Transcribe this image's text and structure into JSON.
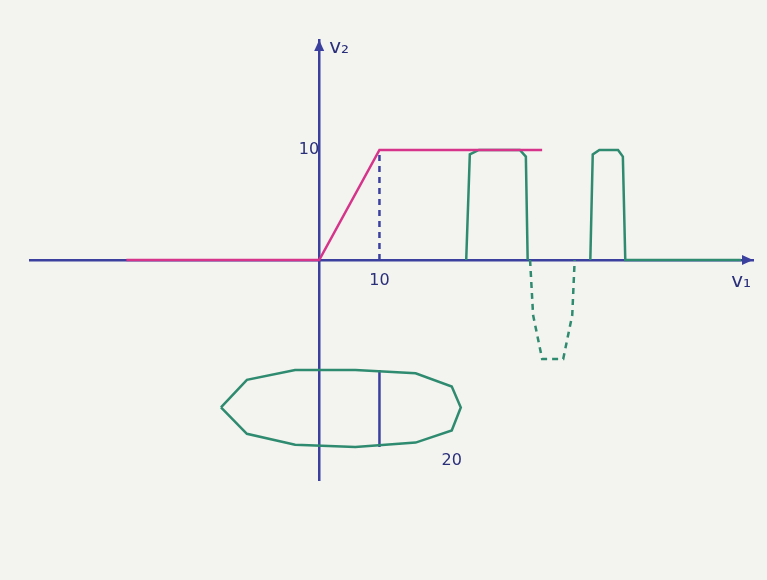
{
  "chart_data": {
    "type": "line",
    "xlabel": "v₁",
    "ylabel": "v₂",
    "xlim": [
      -48,
      72
    ],
    "ylim": [
      -20,
      20
    ],
    "xticks": [
      10
    ],
    "yticks": [
      10
    ],
    "grid": false,
    "series": [
      {
        "color": "#d6338a",
        "line_style": "solid",
        "x": [
          -32,
          0,
          10,
          37
        ],
        "values": [
          0,
          0,
          10,
          10
        ]
      },
      {
        "color": "#3b3f9e",
        "line_style": "dashed",
        "x": [
          10,
          10
        ],
        "values": [
          0,
          10
        ]
      },
      {
        "color": "#2e8b6f",
        "line_style": "solid",
        "x": [
          24.4,
          25,
          26.5,
          33.3,
          34.3,
          34.6
        ],
        "values": [
          0,
          9.6,
          10,
          10,
          9.4,
          0
        ]
      },
      {
        "color": "#2e8b6f",
        "line_style": "dashed",
        "x": [
          35,
          35.5,
          37,
          40.5,
          42,
          42.4
        ],
        "values": [
          0,
          -5,
          -9,
          -9,
          -5,
          0
        ]
      },
      {
        "color": "#2e8b6f",
        "line_style": "solid",
        "x": [
          45,
          45.4,
          46.5,
          49.6,
          50.4,
          50.8,
          70
        ],
        "values": [
          0,
          9.6,
          10,
          10,
          9.4,
          0,
          0
        ]
      },
      {
        "color": "#2e8b6f",
        "line_style": "solid",
        "x": [
          -16.3,
          -12,
          -4,
          6,
          16,
          22,
          23.5,
          22,
          16,
          6,
          -4,
          -12,
          -16.3
        ],
        "values": [
          -13.4,
          -10.9,
          -10,
          -10,
          -10.3,
          -11.5,
          -13.4,
          -15.5,
          -16.6,
          -17,
          -16.8,
          -15.8,
          -13.4
        ]
      },
      {
        "color": "#3b3f9e",
        "line_style": "solid",
        "x": [
          10,
          10
        ],
        "values": [
          -10,
          -17
        ]
      }
    ],
    "annotations": [
      {
        "text": "20",
        "x": 22,
        "y": -18.3
      }
    ]
  }
}
